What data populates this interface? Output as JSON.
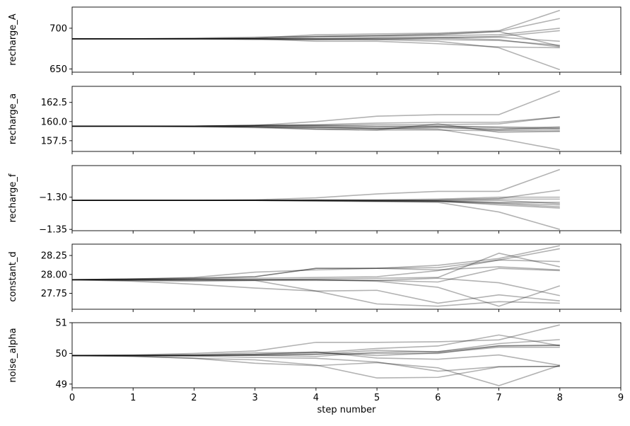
{
  "chart_data": {
    "type": "line",
    "x": [
      0,
      1,
      2,
      3,
      4,
      5,
      6,
      7,
      8
    ],
    "xlim": [
      0,
      9
    ],
    "xticks": [
      "0",
      "1",
      "2",
      "3",
      "4",
      "5",
      "6",
      "7",
      "8",
      "9"
    ],
    "xlabel": "step number",
    "line_color": "#000000",
    "line_alpha": 0.3,
    "panels": [
      {
        "ylabel": "recharge_A",
        "ylim": [
          646,
          726
        ],
        "yticks": [
          650,
          700
        ],
        "ytick_labels": [
          "650",
          "700"
        ],
        "series": [
          [
            687,
            687,
            687,
            687,
            687,
            686,
            684,
            676,
            649
          ],
          [
            687,
            687,
            687,
            688,
            692,
            693,
            694,
            697,
            722
          ],
          [
            687,
            687,
            687,
            688,
            690,
            691,
            693,
            696,
            712
          ],
          [
            687,
            687,
            687,
            687,
            689,
            690,
            691,
            692,
            700
          ],
          [
            687,
            687,
            687,
            687,
            686,
            686,
            688,
            690,
            697
          ],
          [
            687,
            687,
            687,
            687,
            684,
            684,
            681,
            677,
            676
          ],
          [
            687,
            687,
            687,
            687,
            687,
            688,
            689,
            689,
            684
          ],
          [
            687,
            687,
            687,
            686,
            686,
            687,
            686,
            685,
            679
          ],
          [
            687,
            687,
            687,
            687,
            687,
            688,
            688,
            686,
            677
          ],
          [
            687,
            687,
            688,
            689,
            690,
            691,
            692,
            696,
            678
          ]
        ]
      },
      {
        "ylabel": "recharge_a",
        "ylim": [
          156.1,
          164.6
        ],
        "yticks": [
          157.5,
          160.0,
          162.5
        ],
        "ytick_labels": [
          "157.5",
          "160.0",
          "162.5"
        ],
        "series": [
          [
            159.4,
            159.4,
            159.4,
            159.5,
            160.0,
            160.7,
            160.9,
            160.9,
            164.0
          ],
          [
            159.4,
            159.4,
            159.4,
            159.3,
            159.2,
            159.1,
            159.0,
            157.8,
            156.3
          ],
          [
            159.4,
            159.4,
            159.4,
            159.5,
            159.6,
            159.8,
            159.9,
            159.9,
            160.6
          ],
          [
            159.4,
            159.4,
            159.4,
            159.4,
            159.3,
            159.1,
            159.2,
            159.0,
            159.3
          ],
          [
            159.4,
            159.4,
            159.4,
            159.3,
            159.0,
            158.9,
            158.9,
            158.8,
            158.8
          ],
          [
            159.4,
            159.4,
            159.4,
            159.5,
            159.5,
            159.6,
            159.6,
            159.7,
            160.6
          ],
          [
            159.4,
            159.4,
            159.4,
            159.4,
            159.4,
            159.3,
            159.4,
            159.2,
            159.0
          ],
          [
            159.4,
            159.4,
            159.4,
            159.3,
            159.2,
            159.1,
            159.3,
            158.9,
            159.1
          ],
          [
            159.4,
            159.4,
            159.3,
            159.2,
            159.0,
            158.9,
            159.7,
            158.6,
            158.7
          ],
          [
            159.4,
            159.4,
            159.4,
            159.5,
            159.5,
            159.4,
            159.4,
            159.3,
            159.2
          ]
        ]
      },
      {
        "ylabel": "recharge_f",
        "ylim": [
          -1.352,
          -1.251
        ],
        "yticks": [
          -1.35,
          -1.3
        ],
        "ytick_labels": [
          "−1.35",
          "−1.30"
        ],
        "series": [
          [
            -1.305,
            -1.305,
            -1.305,
            -1.304,
            -1.301,
            -1.295,
            -1.291,
            -1.291,
            -1.257
          ],
          [
            -1.305,
            -1.305,
            -1.305,
            -1.305,
            -1.306,
            -1.307,
            -1.308,
            -1.323,
            -1.35
          ],
          [
            -1.305,
            -1.305,
            -1.305,
            -1.305,
            -1.305,
            -1.305,
            -1.304,
            -1.302,
            -1.289
          ],
          [
            -1.305,
            -1.305,
            -1.305,
            -1.305,
            -1.304,
            -1.304,
            -1.303,
            -1.3,
            -1.3
          ],
          [
            -1.305,
            -1.305,
            -1.305,
            -1.305,
            -1.305,
            -1.305,
            -1.305,
            -1.303,
            -1.303
          ],
          [
            -1.305,
            -1.305,
            -1.305,
            -1.305,
            -1.305,
            -1.306,
            -1.306,
            -1.309,
            -1.312
          ],
          [
            -1.305,
            -1.305,
            -1.305,
            -1.305,
            -1.305,
            -1.306,
            -1.307,
            -1.31,
            -1.315
          ],
          [
            -1.305,
            -1.305,
            -1.305,
            -1.305,
            -1.306,
            -1.306,
            -1.306,
            -1.308,
            -1.308
          ],
          [
            -1.305,
            -1.305,
            -1.305,
            -1.305,
            -1.305,
            -1.305,
            -1.306,
            -1.312,
            -1.317
          ],
          [
            -1.305,
            -1.305,
            -1.305,
            -1.305,
            -1.305,
            -1.306,
            -1.306,
            -1.305,
            -1.31
          ]
        ]
      },
      {
        "ylabel": "constant_d",
        "ylim": [
          27.54,
          28.4
        ],
        "yticks": [
          27.75,
          28.0,
          28.25
        ],
        "ytick_labels": [
          "27.75",
          "28.00",
          "28.25"
        ],
        "series": [
          [
            27.93,
            27.94,
            27.96,
            28.03,
            28.06,
            28.08,
            28.12,
            28.21,
            28.38
          ],
          [
            27.93,
            27.94,
            27.95,
            27.97,
            28.08,
            28.08,
            28.09,
            28.19,
            28.34
          ],
          [
            27.93,
            27.93,
            27.94,
            27.95,
            27.96,
            27.97,
            28.05,
            28.19,
            28.17
          ],
          [
            27.93,
            27.93,
            27.93,
            27.93,
            27.94,
            27.95,
            27.96,
            28.28,
            28.1
          ],
          [
            27.93,
            27.94,
            27.95,
            27.97,
            28.08,
            28.08,
            28.06,
            28.1,
            28.06
          ],
          [
            27.93,
            27.92,
            27.91,
            27.92,
            27.92,
            27.92,
            27.9,
            28.08,
            28.05
          ],
          [
            27.93,
            27.93,
            27.93,
            27.93,
            27.93,
            27.92,
            27.95,
            27.89,
            27.72
          ],
          [
            27.93,
            27.91,
            27.87,
            27.82,
            27.78,
            27.79,
            27.62,
            27.73,
            27.65
          ],
          [
            27.93,
            27.92,
            27.92,
            27.92,
            27.78,
            27.61,
            27.58,
            27.64,
            27.62
          ],
          [
            27.93,
            27.93,
            27.93,
            27.93,
            27.93,
            27.91,
            27.83,
            27.58,
            27.85
          ]
        ]
      },
      {
        "ylabel": "noise_alpha",
        "ylim": [
          48.88,
          51.0
        ],
        "yticks": [
          49,
          50,
          51
        ],
        "ytick_labels": [
          "49",
          "50",
          "51"
        ],
        "series": [
          [
            49.93,
            49.95,
            50.0,
            50.08,
            50.36,
            50.36,
            50.38,
            50.44,
            50.93
          ],
          [
            49.93,
            49.93,
            49.94,
            49.97,
            50.02,
            50.16,
            50.24,
            50.6,
            50.25
          ],
          [
            49.93,
            49.93,
            49.93,
            49.94,
            49.97,
            50.1,
            50.05,
            50.32,
            50.45
          ],
          [
            49.93,
            49.94,
            49.96,
            50.02,
            50.03,
            49.93,
            50.02,
            50.2,
            50.2
          ],
          [
            49.93,
            49.93,
            49.93,
            49.94,
            49.9,
            50.04,
            50.06,
            50.24,
            50.26
          ],
          [
            49.93,
            49.9,
            49.84,
            49.79,
            49.62,
            49.2,
            49.22,
            49.56,
            49.58
          ],
          [
            49.93,
            49.92,
            49.91,
            49.87,
            49.84,
            49.72,
            49.42,
            49.57,
            49.58
          ],
          [
            49.93,
            49.91,
            49.84,
            49.68,
            49.6,
            49.7,
            49.53,
            48.95,
            49.61
          ],
          [
            49.93,
            49.93,
            49.94,
            49.97,
            50.05,
            49.85,
            49.81,
            49.95,
            49.61
          ],
          [
            49.93,
            49.93,
            49.93,
            49.94,
            49.97,
            50.0,
            50.0,
            50.25,
            50.27
          ]
        ]
      }
    ]
  }
}
